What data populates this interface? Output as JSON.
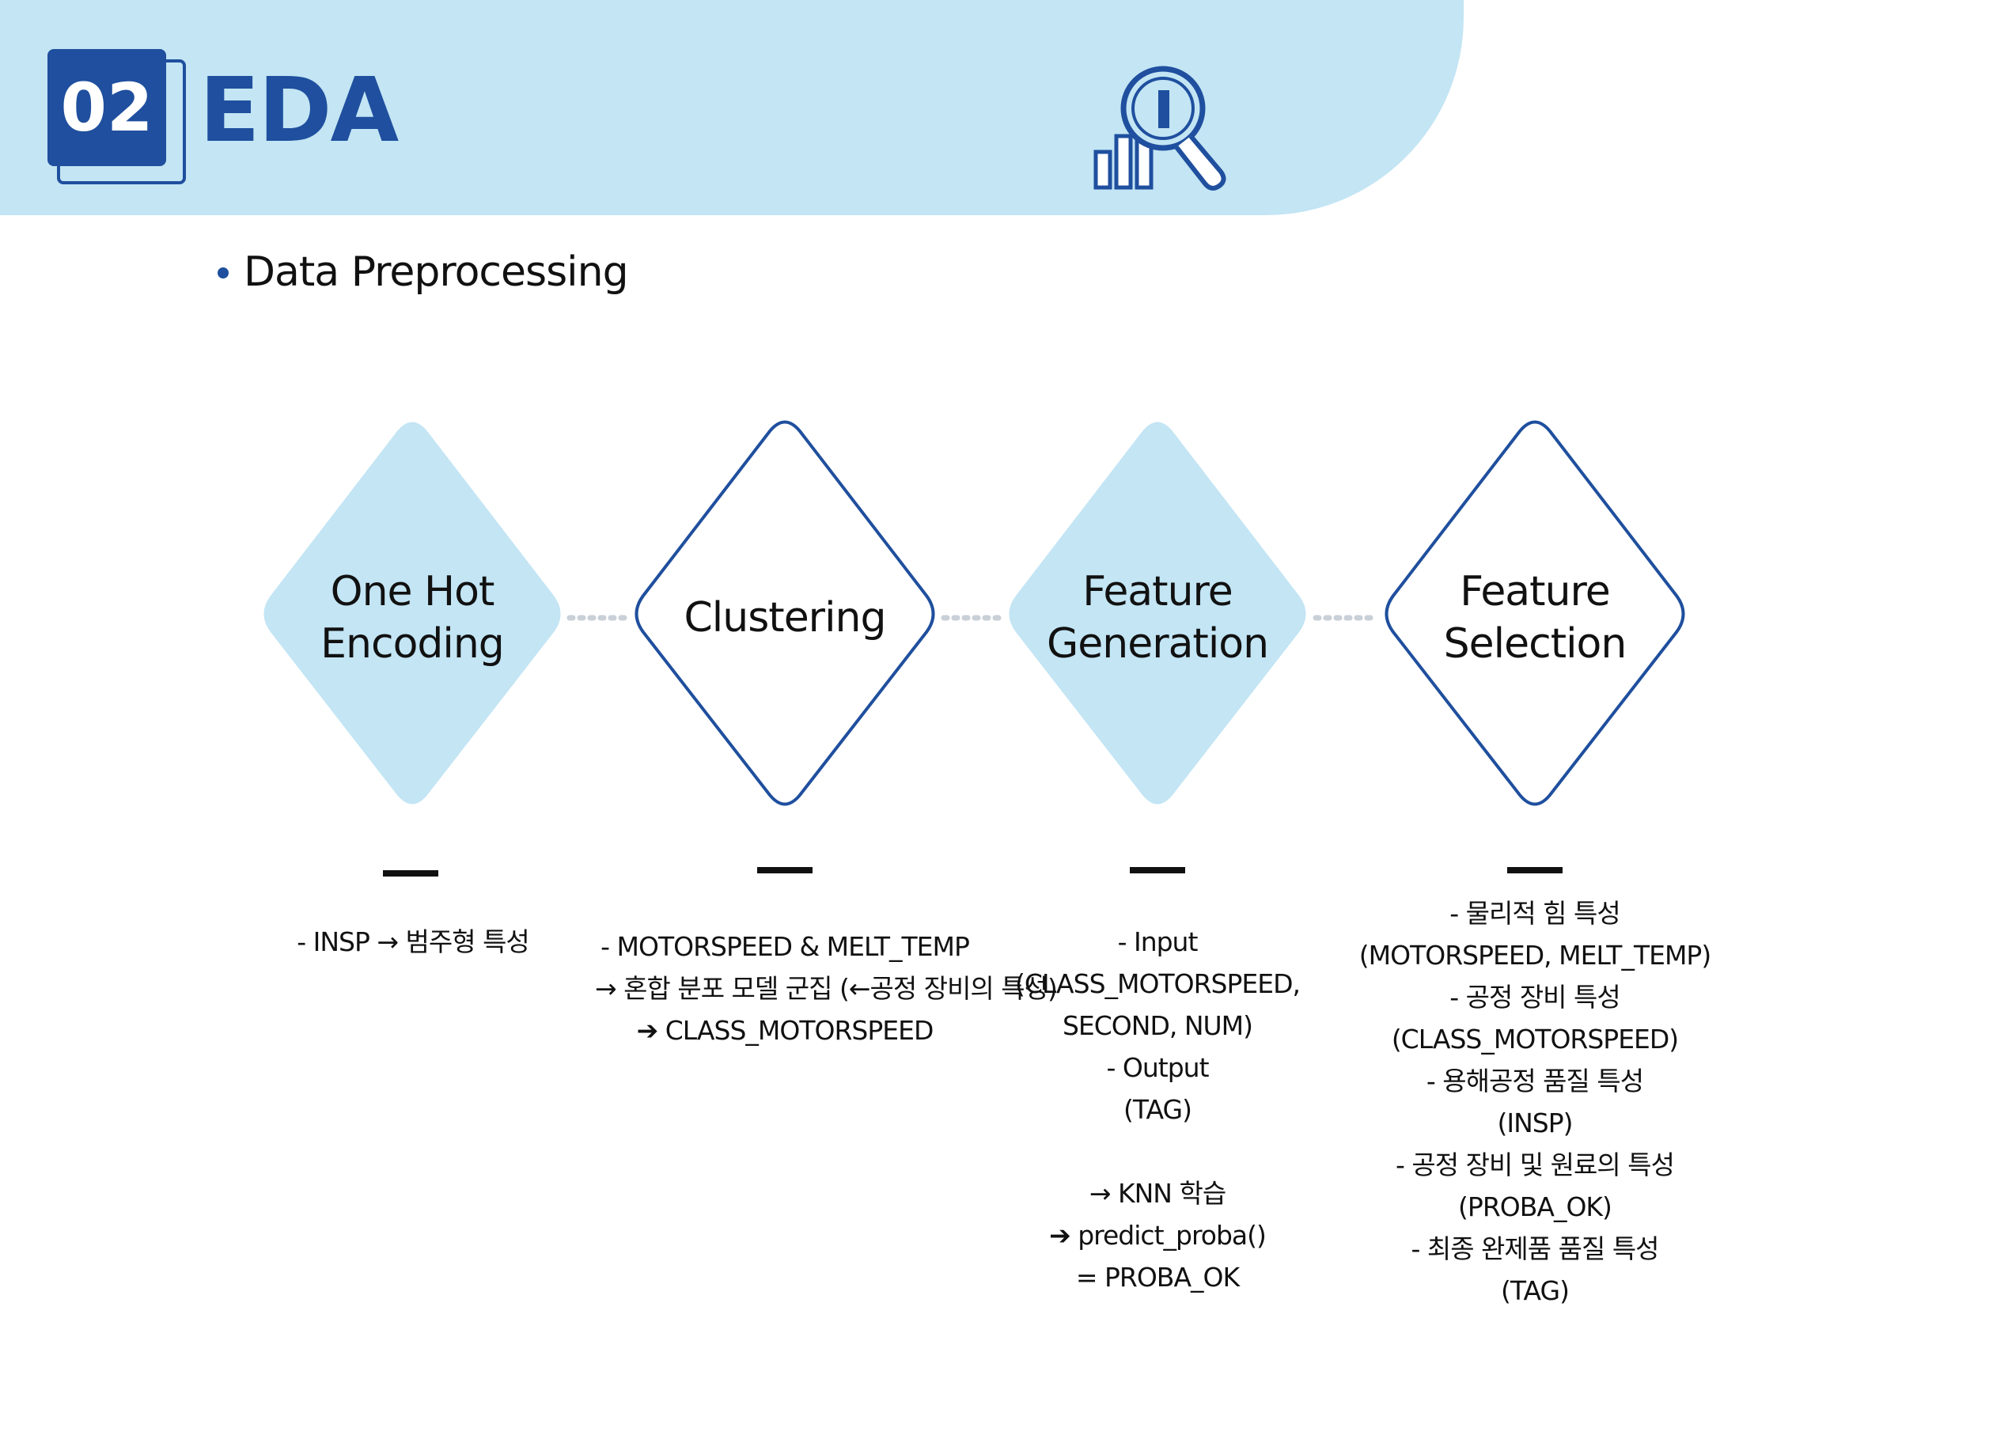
{
  "header": {
    "number": "02",
    "title": "EDA",
    "icon": "chart-magnifier-icon"
  },
  "section": {
    "title": "Data Preprocessing"
  },
  "colors": {
    "header_band": "#c3e5f4",
    "accent": "#1f4f9e",
    "diamond_fill": "#c3e5f4"
  },
  "steps": [
    {
      "label_lines": [
        "One Hot",
        "Encoding"
      ],
      "style": "filled",
      "description": [
        "-  INSP → 범주형 특성"
      ]
    },
    {
      "label_lines": [
        "Clustering"
      ],
      "style": "outline",
      "description": [
        "-  MOTORSPEED & MELT_TEMP",
        "→ 혼합 분포 모델 군집 (←공정 장비의 특성)",
        "➔ CLASS_MOTORSPEED"
      ]
    },
    {
      "label_lines": [
        "Feature",
        "Generation"
      ],
      "style": "filled",
      "description": [
        "-  Input",
        "(CLASS_MOTORSPEED,",
        "SECOND, NUM)",
        "-  Output",
        "(TAG)",
        "",
        "→ KNN 학습",
        "➔ predict_proba()",
        "= PROBA_OK"
      ]
    },
    {
      "label_lines": [
        "Feature",
        "Selection"
      ],
      "style": "outline",
      "description": [
        "-  물리적 힘 특성",
        "(MOTORSPEED, MELT_TEMP)",
        "-  공정 장비 특성",
        "(CLASS_MOTORSPEED)",
        "-  용해공정 품질 특성",
        "(INSP)",
        "-  공정 장비 및 원료의 특성",
        "(PROBA_OK)",
        "-  최종 완제품 품질 특성",
        "(TAG)"
      ]
    }
  ]
}
